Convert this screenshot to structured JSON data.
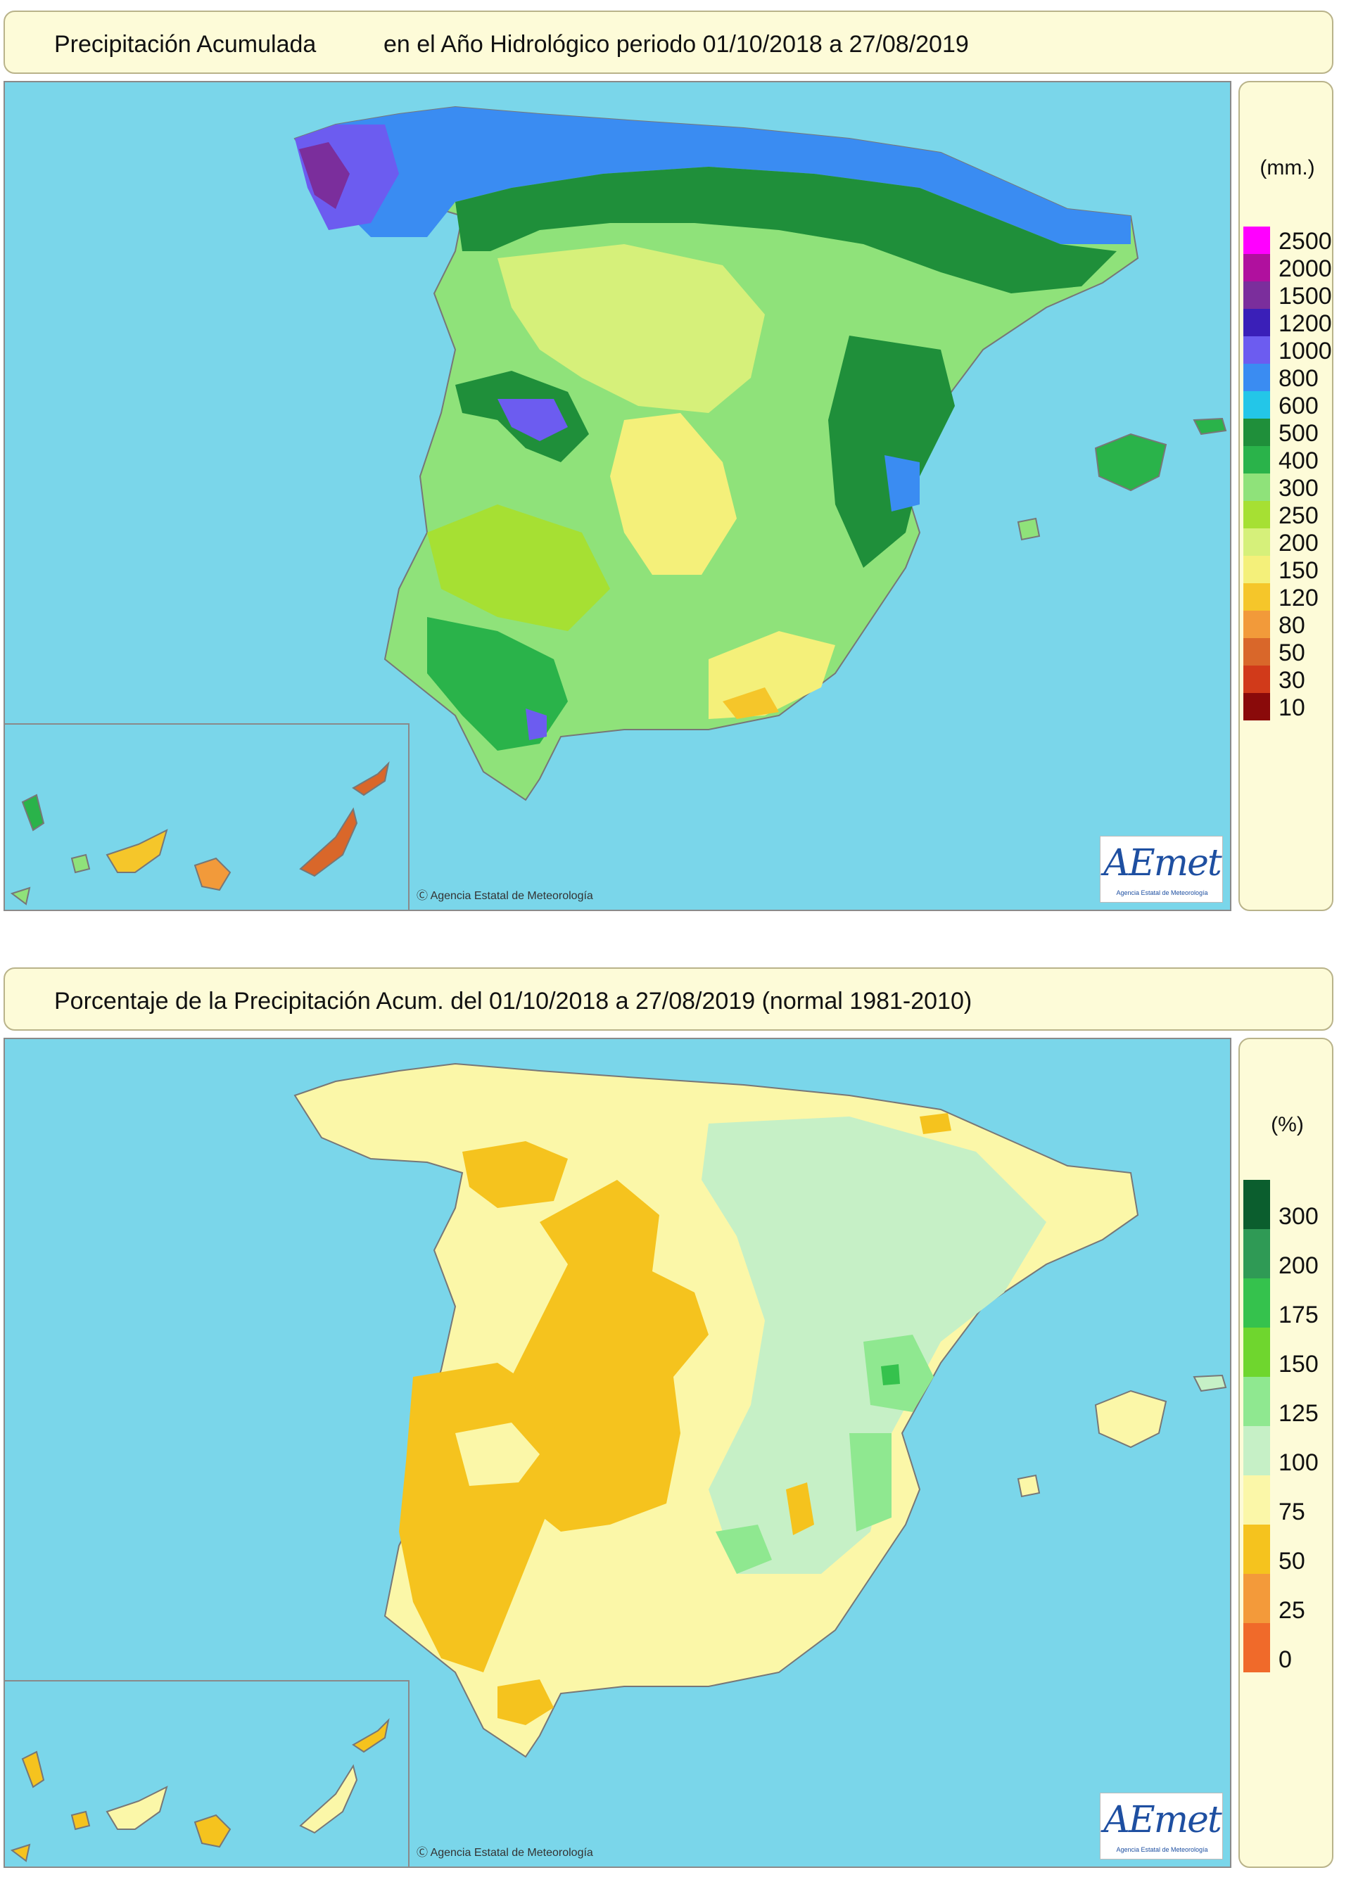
{
  "panel_precip": {
    "title_a": "Precipitación Acumulada",
    "title_b": "en el Año Hidrológico  periodo 01/10/2018 a 27/08/2019",
    "legend_unit": "(mm.)",
    "legend": [
      {
        "label": "2500",
        "color": "#ff00ff"
      },
      {
        "label": "2000",
        "color": "#b0109e"
      },
      {
        "label": "1500",
        "color": "#7b2e9c"
      },
      {
        "label": "1200",
        "color": "#3a1fb8"
      },
      {
        "label": "1000",
        "color": "#6c5cf0"
      },
      {
        "label": "800",
        "color": "#3a8cf2"
      },
      {
        "label": "600",
        "color": "#23c6e8"
      },
      {
        "label": "500",
        "color": "#1f8f3a"
      },
      {
        "label": "400",
        "color": "#2ab34a"
      },
      {
        "label": "300",
        "color": "#8fe27a"
      },
      {
        "label": "250",
        "color": "#a6e033"
      },
      {
        "label": "200",
        "color": "#d6f07a"
      },
      {
        "label": "150",
        "color": "#f4f07a"
      },
      {
        "label": "120",
        "color": "#f5c62a"
      },
      {
        "label": "80",
        "color": "#f29a3a"
      },
      {
        "label": "50",
        "color": "#d9672a"
      },
      {
        "label": "30",
        "color": "#d13a1a"
      },
      {
        "label": "10",
        "color": "#8a0a0a"
      }
    ],
    "copyright": "Ⓒ Agencia Estatal de Meteorología",
    "logo_text": "AEmet",
    "logo_sub": "Agencia Estatal de Meteorología"
  },
  "panel_percent": {
    "title": "Porcentaje de la Precipitación Acum. del 01/10/2018 a  27/08/2019  (normal 1981-2010)",
    "legend_unit": "(%)",
    "legend": [
      {
        "label": "300",
        "color": "#0b5e2e"
      },
      {
        "label": "200",
        "color": "#2f9a55"
      },
      {
        "label": "175",
        "color": "#35c24d"
      },
      {
        "label": "150",
        "color": "#6fd62e"
      },
      {
        "label": "125",
        "color": "#8fe890"
      },
      {
        "label": "100",
        "color": "#c6f0c6"
      },
      {
        "label": "75",
        "color": "#fbf7a8"
      },
      {
        "label": "50",
        "color": "#f5c31e"
      },
      {
        "label": "25",
        "color": "#f39a3a"
      },
      {
        "label": "0",
        "color": "#f06a2a"
      }
    ],
    "copyright": "Ⓒ Agencia Estatal de Meteorología",
    "logo_text": "AEmet",
    "logo_sub": "Agencia Estatal de Meteorología"
  }
}
